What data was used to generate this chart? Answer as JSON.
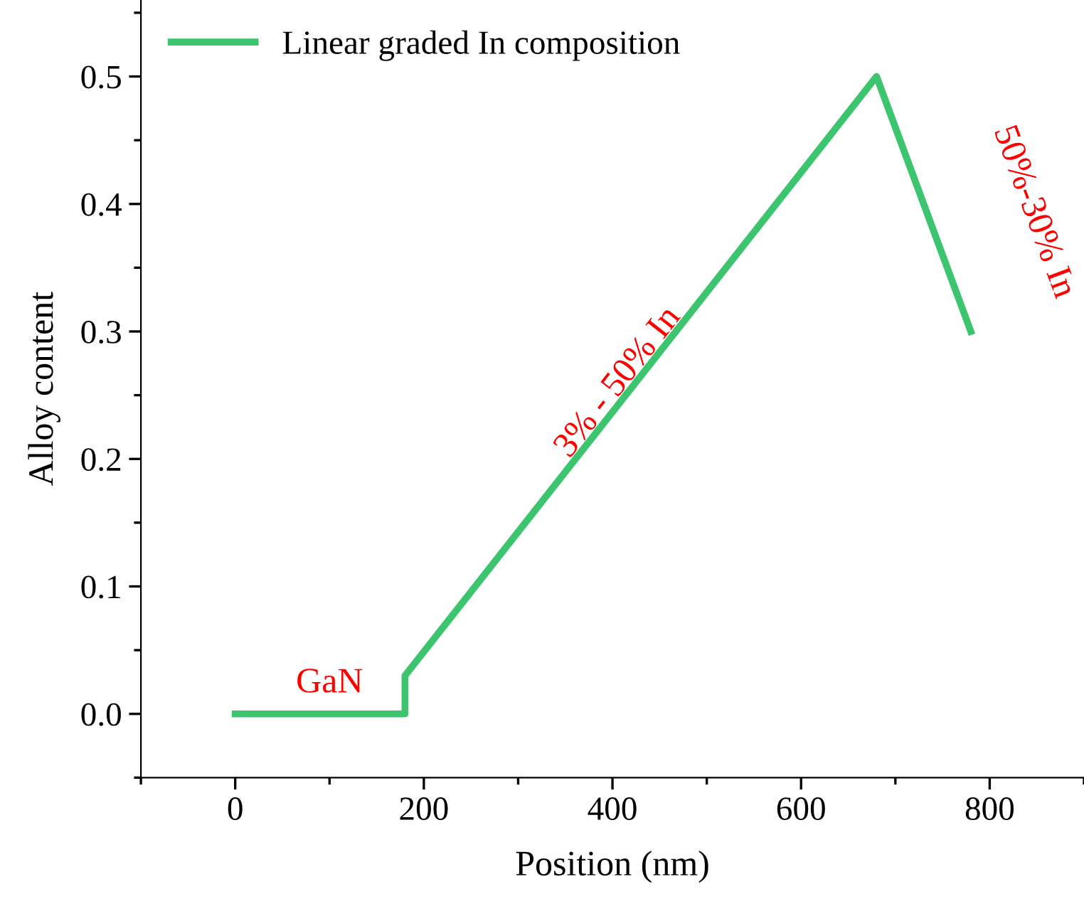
{
  "chart_data": {
    "type": "line",
    "xlabel": "Position (nm)",
    "ylabel": "Alloy content",
    "x": [
      0,
      180,
      180,
      680,
      780
    ],
    "series": [
      {
        "name": "Linear graded In composition",
        "color": "#3cc46e",
        "values": [
          0,
          0,
          0.03,
          0.5,
          0.3
        ]
      }
    ],
    "xlim": [
      -100,
      900
    ],
    "xticks": [
      0,
      200,
      400,
      600,
      800
    ],
    "ylim": [
      -0.05,
      0.56
    ],
    "yticks": [
      {
        "value": 0,
        "label": "0.0"
      },
      0.1,
      0.2,
      0.3,
      0.4,
      0.5
    ],
    "annotations": [
      "GaN",
      "3% - 50% In",
      "50%-30% In"
    ],
    "legend": "top left",
    "grid": false,
    "marker": "none",
    "line_style": "solid"
  }
}
